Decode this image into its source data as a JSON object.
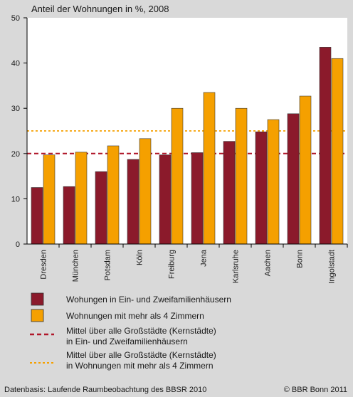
{
  "chart_data": {
    "type": "bar",
    "title": "Anteil der Wohnungen in %, 2008",
    "categories": [
      "Dresden",
      "München",
      "Potsdam",
      "Köln",
      "Freiburg",
      "Jena",
      "Karlsruhe",
      "Aachen",
      "Bonn",
      "Ingolstadt"
    ],
    "series": [
      {
        "name": "Wohungen in Ein- und Zweifamilienhäusern",
        "color": "#8b1a2b",
        "values": [
          12.5,
          12.7,
          16.0,
          18.7,
          19.7,
          20.2,
          22.7,
          24.8,
          28.8,
          43.5
        ]
      },
      {
        "name": "Wohnungen mit mehr als 4 Zimmern",
        "color": "#f5a000",
        "values": [
          19.7,
          20.3,
          21.7,
          23.3,
          30.0,
          33.5,
          30.0,
          27.5,
          32.7,
          41.0
        ]
      }
    ],
    "reference_lines": [
      {
        "value": 20,
        "color": "#b0182a",
        "style": "dashed",
        "label_lines": [
          "Mittel über alle Großstädte (Kernstädte)",
          "in Ein- und Zweifamilienhäusern"
        ]
      },
      {
        "value": 25,
        "color": "#f5a000",
        "style": "dotted",
        "label_lines": [
          "Mittel über alle Großstädte (Kernstädte)",
          "in Wohnungen mit mehr als 4 Zimmern"
        ]
      }
    ],
    "ylim": [
      0,
      50
    ],
    "yticks": [
      0,
      10,
      20,
      30,
      40,
      50
    ],
    "grid": false,
    "legend_position": "bottom",
    "xlabel": "",
    "ylabel": ""
  },
  "footer": {
    "source": "Datenbasis: Laufende Raumbeobachtung des BBSR 2010",
    "copyright": "© BBR Bonn 2011"
  }
}
